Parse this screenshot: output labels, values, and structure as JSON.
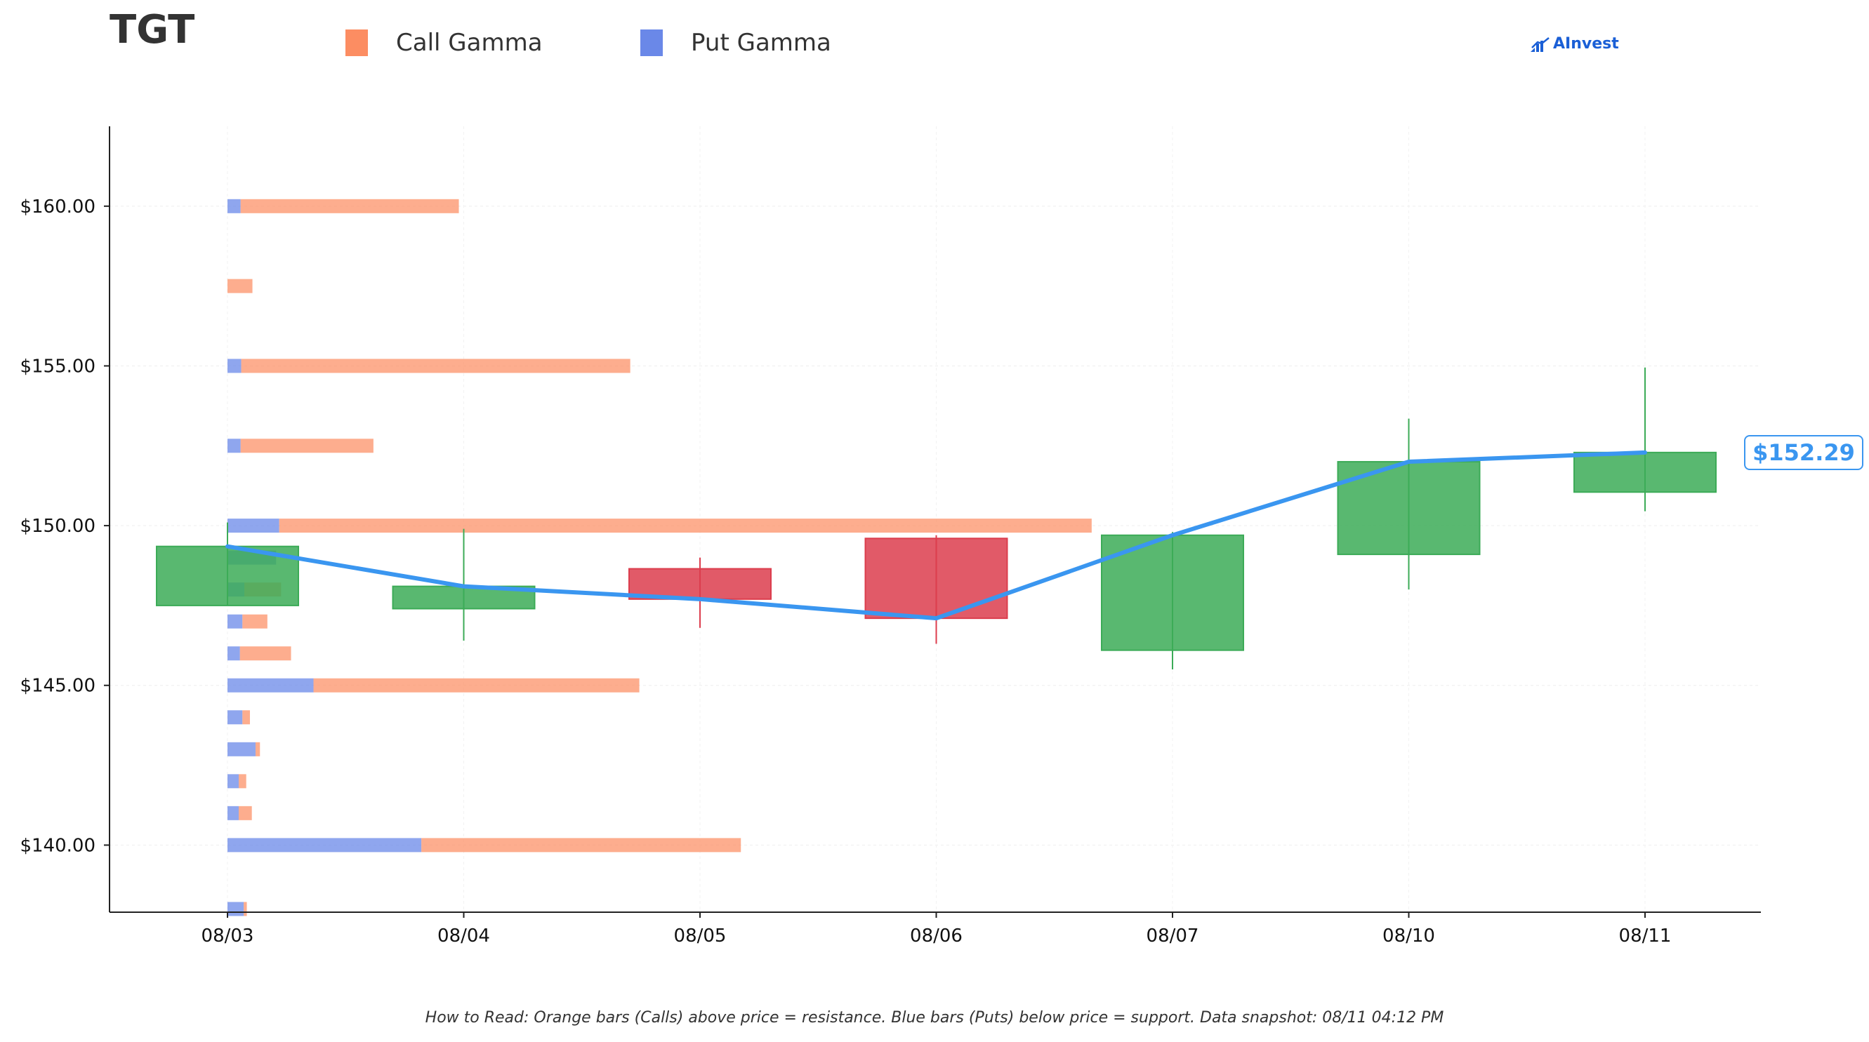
{
  "header": {
    "ticker": "TGT"
  },
  "legend": [
    {
      "label": "Call Gamma",
      "color": "#fc8d62"
    },
    {
      "label": "Put Gamma",
      "color": "#6a88e8"
    }
  ],
  "brand": {
    "name": "AInvest"
  },
  "footnote": "How to Read: Orange bars (Calls) above price = resistance. Blue bars (Puts) below price = support. Data snapshot: 08/11 04:12 PM",
  "price_label": "$152.29",
  "colors": {
    "up": "#3cab57",
    "down": "#dc3d4d",
    "price_line": "#3a96f0",
    "call": "#fc8d62",
    "put": "#6a88e8"
  },
  "chart_data": {
    "type": "candlestick",
    "categories": [
      "08/03",
      "08/04",
      "08/05",
      "08/06",
      "08/07",
      "08/10",
      "08/11"
    ],
    "ylim": [
      137.9,
      162.5
    ],
    "yticks": [
      140,
      145,
      150,
      155,
      160
    ],
    "ytick_labels": [
      "$140.00",
      "$145.00",
      "$150.00",
      "$155.00",
      "$160.00"
    ],
    "candles": [
      {
        "date": "08/03",
        "open": 147.5,
        "close": 149.35,
        "high": 150.1,
        "low": 147.5
      },
      {
        "date": "08/04",
        "open": 147.4,
        "close": 148.1,
        "high": 149.9,
        "low": 146.4
      },
      {
        "date": "08/05",
        "open": 148.65,
        "close": 147.7,
        "high": 149.0,
        "low": 146.8
      },
      {
        "date": "08/06",
        "open": 149.6,
        "close": 147.1,
        "high": 149.7,
        "low": 146.3
      },
      {
        "date": "08/07",
        "open": 146.1,
        "close": 149.7,
        "high": 149.8,
        "low": 145.5
      },
      {
        "date": "08/10",
        "open": 149.1,
        "close": 152.0,
        "high": 153.35,
        "low": 148.0
      },
      {
        "date": "08/11",
        "open": 151.05,
        "close": 152.29,
        "high": 154.95,
        "low": 150.45
      }
    ],
    "price_line": [
      149.35,
      148.1,
      147.7,
      147.1,
      149.7,
      152.0,
      152.29
    ],
    "gamma_unit": "fraction of max",
    "gamma": [
      {
        "strike": 160.0,
        "put": 0.0152,
        "call": 0.2527
      },
      {
        "strike": 157.5,
        "put": 0.0,
        "call": 0.0289
      },
      {
        "strike": 155.0,
        "put": 0.0159,
        "call": 0.4505
      },
      {
        "strike": 152.5,
        "put": 0.0152,
        "call": 0.1538
      },
      {
        "strike": 150.0,
        "put": 0.0599,
        "call": 0.9408
      },
      {
        "strike": 149.0,
        "put": 0.0563,
        "call": 0.0
      },
      {
        "strike": 148.0,
        "put": 0.0195,
        "call": 0.0426
      },
      {
        "strike": 147.0,
        "put": 0.0173,
        "call": 0.0289
      },
      {
        "strike": 146.0,
        "put": 0.0144,
        "call": 0.0592
      },
      {
        "strike": 145.0,
        "put": 0.0996,
        "call": 0.3773
      },
      {
        "strike": 144.0,
        "put": 0.0173,
        "call": 0.0087
      },
      {
        "strike": 143.0,
        "put": 0.0325,
        "call": 0.0051
      },
      {
        "strike": 142.0,
        "put": 0.013,
        "call": 0.0087
      },
      {
        "strike": 141.0,
        "put": 0.013,
        "call": 0.0152
      },
      {
        "strike": 140.0,
        "put": 0.2245,
        "call": 0.37
      },
      {
        "strike": 138.0,
        "put": 0.0188,
        "call": 0.0036
      }
    ],
    "grid": true
  }
}
